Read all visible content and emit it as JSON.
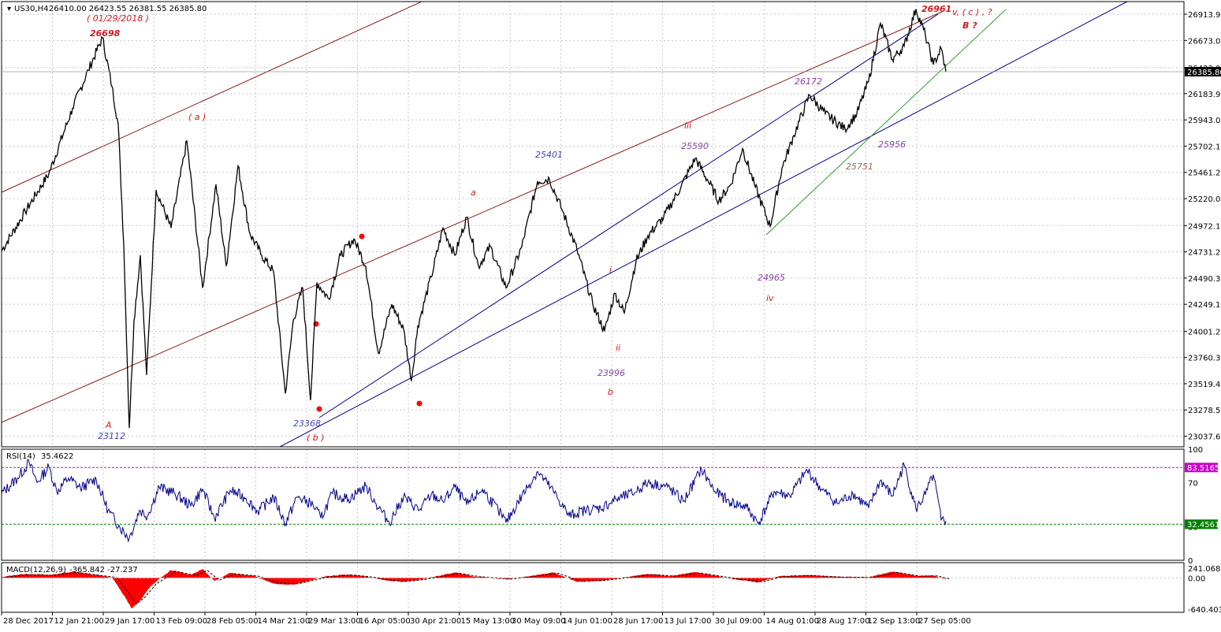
{
  "header": {
    "symbol": "US30,H4",
    "ohlc": "26410.00 26423.55 26381.55 26385.80"
  },
  "colors": {
    "price": "#000000",
    "channel_red": "#8b1a1a",
    "channel_blue": "#00008b",
    "trend_green": "#2e9e2e",
    "rsi_line": "#00008b",
    "rsi_level_high": "#cc00cc",
    "rsi_level_low": "#008000",
    "macd_hist": "#ff0000",
    "grid": "#c8c8c8",
    "label_red": "#d11a1a",
    "label_blue": "#4747b8",
    "label_purple": "#8e3fa8",
    "label_brown": "#8a6f62"
  },
  "chart_data": [
    {
      "type": "line",
      "name": "price",
      "symbol": "US30,H4",
      "y_ticks": [
        23037.6,
        23278.5,
        23519.4,
        23760.3,
        24001.2,
        24249.1,
        24490.3,
        24731.2,
        24972.1,
        25220.0,
        25461.2,
        25702.1,
        25943.0,
        26183.9,
        26423.0,
        26673.0,
        26913.9
      ],
      "ylim": [
        22940,
        27030
      ],
      "last_price": "26385.80",
      "x_ticks": [
        "28 Dec 2017",
        "12 Jan 21:00",
        "29 Jan 17:00",
        "13 Feb 09:00",
        "28 Feb 05:00",
        "14 Mar 21:00",
        "29 Mar 13:00",
        "16 Apr 05:00",
        "30 Apr 21:00",
        "15 May 13:00",
        "30 May 09:00",
        "14 Jun 01:00",
        "28 Jun 17:00",
        "13 Jul 17:00",
        "30 Jul 09:00",
        "14 Aug 01:00",
        "28 Aug 17:00",
        "12 Sep 13:00",
        "27 Sep 05:00"
      ],
      "x": [
        0,
        30,
        60,
        90,
        110,
        128,
        140,
        148,
        155,
        162,
        168,
        176,
        184,
        196,
        215,
        235,
        255,
        272,
        285,
        300,
        315,
        330,
        345,
        360,
        370,
        382,
        392,
        400,
        415,
        430,
        447,
        462,
        478,
        495,
        510,
        520,
        528,
        545,
        560,
        575,
        590,
        605,
        620,
        640,
        660,
        680,
        695,
        712,
        730,
        750,
        765,
        778,
        790,
        805,
        820,
        840,
        862,
        880,
        895,
        910,
        925,
        940,
        955,
        975,
        990,
        1005,
        1025,
        1045,
        1070,
        1085,
        1100,
        1115,
        1130,
        1145,
        1160,
        1172,
        1182,
        1192,
        1198
      ],
      "values": [
        24740,
        25100,
        25450,
        26050,
        26400,
        26698,
        26250,
        25900,
        24800,
        23112,
        24100,
        24700,
        23600,
        25300,
        24950,
        25750,
        24400,
        25350,
        24600,
        25520,
        24900,
        24700,
        24550,
        23430,
        24100,
        24400,
        23368,
        24450,
        24300,
        24700,
        24850,
        24600,
        23800,
        24250,
        24020,
        23550,
        24050,
        24500,
        24950,
        24700,
        25050,
        24600,
        24780,
        24400,
        24780,
        25380,
        25401,
        25100,
        24750,
        24250,
        24001,
        24350,
        24170,
        24650,
        24880,
        25050,
        25330,
        25590,
        25400,
        25200,
        25350,
        25680,
        25350,
        24965,
        25500,
        25800,
        26172,
        26000,
        25860,
        26000,
        26300,
        26830,
        26500,
        26620,
        26961,
        26720,
        26450,
        26600,
        26385.8
      ]
    },
    {
      "type": "line",
      "name": "RSI(14)",
      "header_value": "35.4622",
      "ylim": [
        0,
        100
      ],
      "y_ticks": [
        0,
        30,
        70,
        100
      ],
      "levels": [
        "83.5165",
        "32.4561"
      ],
      "x": [
        0,
        20,
        35,
        45,
        60,
        70,
        85,
        100,
        120,
        135,
        150,
        162,
        175,
        185,
        200,
        220,
        240,
        255,
        270,
        290,
        310,
        325,
        345,
        360,
        375,
        395,
        405,
        420,
        440,
        462,
        475,
        492,
        510,
        530,
        545,
        560,
        575,
        590,
        610,
        630,
        640,
        660,
        680,
        700,
        720,
        740,
        760,
        780,
        800,
        820,
        845,
        865,
        888,
        905,
        925,
        945,
        960,
        980,
        1000,
        1022,
        1040,
        1060,
        1080,
        1100,
        1115,
        1130,
        1145,
        1160,
        1172,
        1182,
        1192,
        1198
      ],
      "values": [
        60,
        74,
        88,
        70,
        84,
        62,
        74,
        65,
        73,
        45,
        30,
        20,
        45,
        40,
        66,
        60,
        49,
        64,
        38,
        63,
        56,
        44,
        57,
        33,
        57,
        50,
        38,
        60,
        55,
        67,
        51,
        34,
        57,
        45,
        59,
        53,
        66,
        50,
        64,
        45,
        34,
        58,
        80,
        62,
        40,
        45,
        47,
        55,
        60,
        70,
        66,
        53,
        82,
        62,
        52,
        48,
        33,
        62,
        58,
        81,
        64,
        51,
        60,
        47,
        72,
        58,
        86,
        46,
        59,
        77,
        36,
        35.4622
      ]
    },
    {
      "type": "area",
      "name": "MACD(12,26,9)",
      "header_value": "-365.842 -27.237",
      "ylim": [
        -700,
        310
      ],
      "y_ticks": [
        "241.068",
        "0.00",
        "-640.403"
      ],
      "x": [
        0,
        30,
        60,
        90,
        120,
        140,
        155,
        165,
        175,
        190,
        215,
        240,
        255,
        270,
        290,
        320,
        345,
        370,
        390,
        410,
        440,
        465,
        490,
        510,
        530,
        560,
        575,
        600,
        640,
        680,
        700,
        730,
        760,
        790,
        820,
        850,
        880,
        900,
        930,
        960,
        985,
        1020,
        1060,
        1100,
        1130,
        1160,
        1180,
        1198
      ],
      "values": [
        20,
        80,
        60,
        130,
        60,
        10,
        -350,
        -620,
        -480,
        -150,
        160,
        60,
        180,
        -60,
        100,
        40,
        -120,
        -140,
        -60,
        30,
        70,
        20,
        -60,
        -80,
        -40,
        60,
        110,
        30,
        -30,
        60,
        110,
        -80,
        -60,
        10,
        80,
        40,
        120,
        60,
        -30,
        -90,
        30,
        60,
        20,
        10,
        130,
        40,
        50,
        -27.237
      ]
    }
  ],
  "annotations": {
    "lbl_26961": "26961",
    "lbl_vc": "v,  ( c ) , ?",
    "lbl_B": "B ?",
    "lbl_date": "( 01/29/2018 )",
    "lbl_26698": "26698",
    "lbl_a_paren": "( a )",
    "lbl_iii": "iii",
    "lbl_25590": "25590",
    "lbl_26172": "26172",
    "lbl_25401": "25401",
    "lbl_a": "a",
    "lbl_25956": "25956",
    "lbl_25751": "25751",
    "lbl_24965": "24965",
    "lbl_iv": "iv",
    "lbl_i": "i",
    "lbl_ii": "ii",
    "lbl_23996": "23996",
    "lbl_b": "b",
    "lbl_A": "A",
    "lbl_23112": "23112",
    "lbl_23368": "23368",
    "lbl_b_paren": "( b )"
  }
}
